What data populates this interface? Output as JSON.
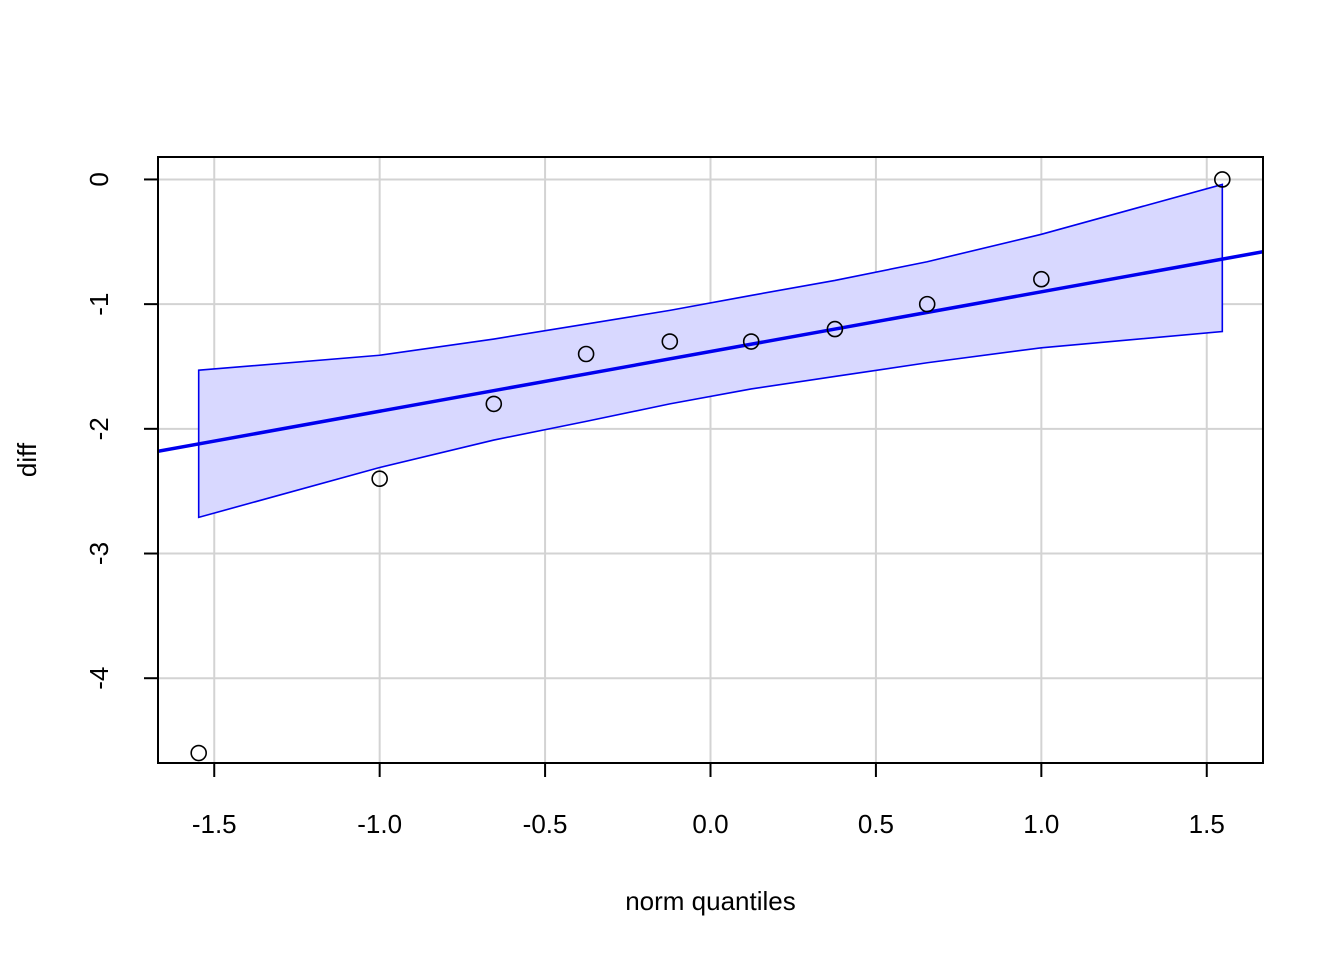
{
  "chart_data": {
    "type": "scatter",
    "title": "",
    "xlabel": "norm quantiles",
    "ylabel": "diff",
    "xlim": [
      -1.67,
      1.67
    ],
    "ylim": [
      -4.68,
      0.18
    ],
    "grid": true,
    "xticks": [
      -1.5,
      -1.0,
      -0.5,
      0.0,
      0.5,
      1.0,
      1.5
    ],
    "xtick_labels": [
      "-1.5",
      "-1.0",
      "-0.5",
      "0.0",
      "0.5",
      "1.0",
      "1.5"
    ],
    "yticks": [
      0,
      -1,
      -2,
      -3,
      -4
    ],
    "ytick_labels": [
      "0",
      "-1",
      "-2",
      "-3",
      "-4"
    ],
    "points": [
      {
        "x": -1.547,
        "y": -4.6
      },
      {
        "x": -1.0,
        "y": -2.4
      },
      {
        "x": -0.655,
        "y": -1.8
      },
      {
        "x": -0.376,
        "y": -1.4
      },
      {
        "x": -0.123,
        "y": -1.3
      },
      {
        "x": 0.123,
        "y": -1.3
      },
      {
        "x": 0.376,
        "y": -1.2
      },
      {
        "x": 0.655,
        "y": -1.0
      },
      {
        "x": 1.0,
        "y": -0.8
      },
      {
        "x": 1.547,
        "y": 0.0
      }
    ],
    "reference_line": {
      "intercept": -1.38,
      "slope": 0.4791,
      "color": "#0000EE"
    },
    "envelope": {
      "x": [
        -1.547,
        -1.0,
        -0.655,
        -0.376,
        -0.123,
        0.123,
        0.376,
        0.655,
        1.0,
        1.547
      ],
      "upper": [
        -1.53,
        -1.41,
        -1.28,
        -1.16,
        -1.05,
        -0.93,
        -0.81,
        -0.66,
        -0.44,
        -0.04
      ],
      "lower": [
        -2.71,
        -2.31,
        -2.09,
        -1.94,
        -1.8,
        -1.68,
        -1.58,
        -1.47,
        -1.35,
        -1.22
      ],
      "fill_color": "#D8D8FF",
      "stroke_color": "#0000EE"
    },
    "point_color": "#000000",
    "grid_color": "#D3D3D3"
  }
}
